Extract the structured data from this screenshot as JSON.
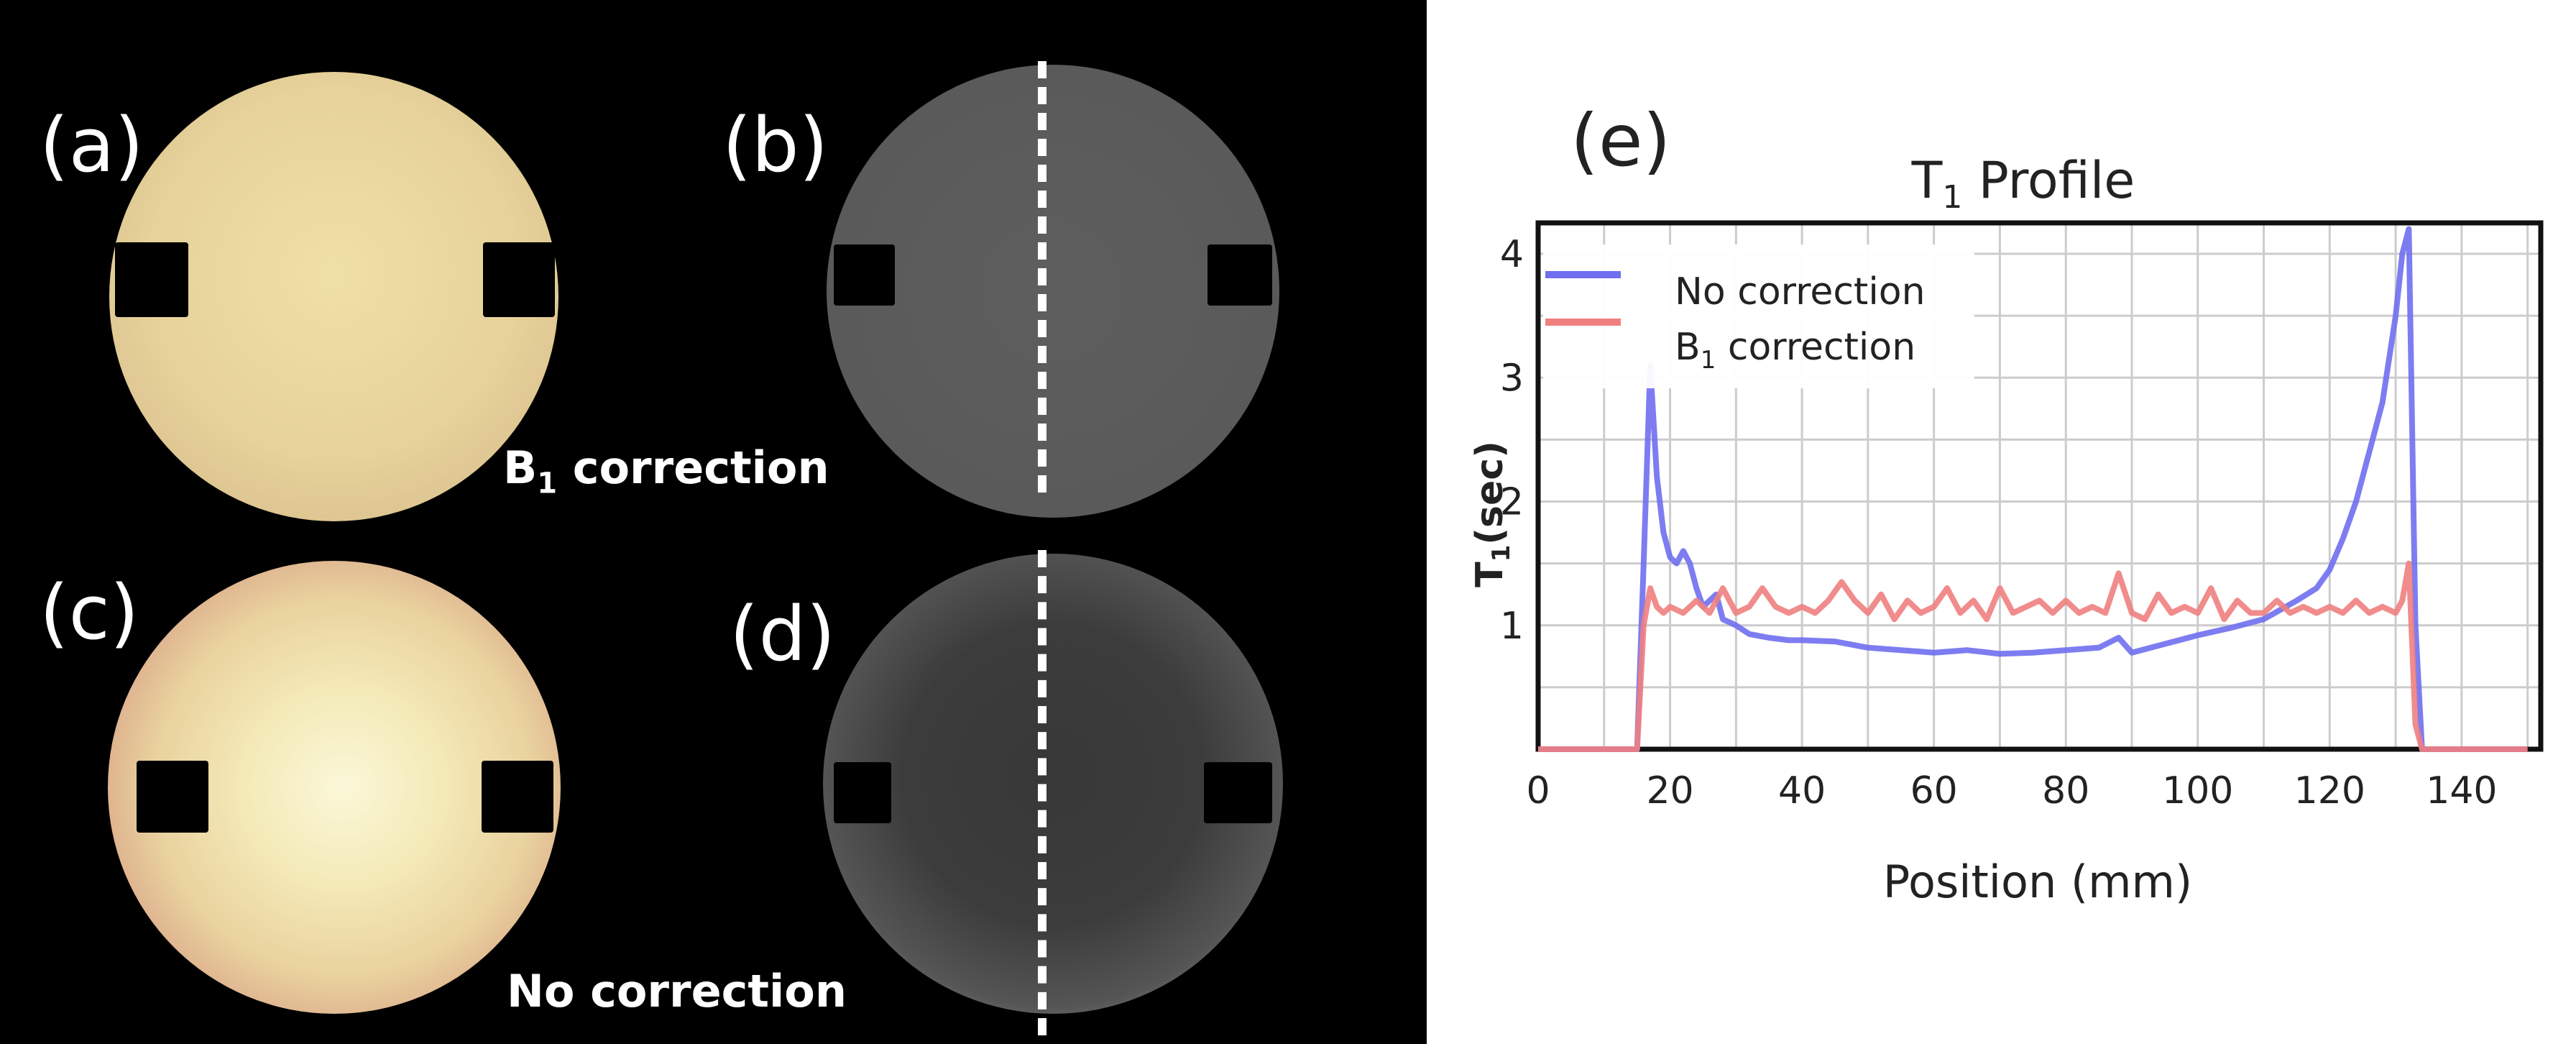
{
  "panels": {
    "a": {
      "label": "(a)",
      "caption_main": "B",
      "caption_sub": "1",
      "caption_rest": " correction"
    },
    "b": {
      "label": "(b)"
    },
    "c": {
      "label": "(c)",
      "caption": "No correction"
    },
    "d": {
      "label": "(d)"
    },
    "e": {
      "label": "(e)"
    }
  },
  "colors": {
    "no_correction": "#6f6ff0",
    "b1_correction": "#f08080",
    "grid": "#cccccc",
    "frame": "#111111"
  },
  "chart_data": {
    "type": "line",
    "title_main": "T",
    "title_sub": "1",
    "title_rest": " Profile",
    "xlabel": "Position (mm)",
    "ylabel_main": "T",
    "ylabel_sub": "1",
    "ylabel_rest": "(sec)",
    "xlim": [
      0,
      152
    ],
    "ylim": [
      0,
      4.25
    ],
    "xticks": [
      0,
      20,
      40,
      60,
      80,
      100,
      120,
      140
    ],
    "yticks": [
      1,
      2,
      3,
      4
    ],
    "legend_position": "top-left",
    "series": [
      {
        "name": "No correction",
        "legend_label": "No correction",
        "color": "#6f6ff0",
        "x": [
          0,
          15,
          16,
          17,
          18,
          19,
          20,
          21,
          22,
          23,
          24,
          25,
          26,
          27,
          28,
          30,
          32,
          35,
          38,
          40,
          45,
          50,
          55,
          60,
          65,
          70,
          75,
          80,
          85,
          88,
          90,
          95,
          100,
          105,
          110,
          115,
          118,
          120,
          122,
          124,
          126,
          128,
          130,
          131,
          132,
          133,
          134,
          140,
          150
        ],
        "y": [
          0,
          0,
          1.5,
          3.1,
          2.2,
          1.75,
          1.55,
          1.5,
          1.6,
          1.5,
          1.3,
          1.15,
          1.2,
          1.25,
          1.05,
          1.0,
          0.93,
          0.9,
          0.88,
          0.88,
          0.87,
          0.82,
          0.8,
          0.78,
          0.8,
          0.77,
          0.78,
          0.8,
          0.82,
          0.9,
          0.78,
          0.85,
          0.92,
          0.98,
          1.05,
          1.2,
          1.3,
          1.45,
          1.7,
          2.0,
          2.4,
          2.8,
          3.5,
          4.0,
          4.2,
          1.0,
          0,
          0,
          0
        ]
      },
      {
        "name": "B1 correction",
        "legend_label_main": "B",
        "legend_label_sub": "1",
        "legend_label_rest": " correction",
        "color": "#f08080",
        "x": [
          0,
          15,
          16,
          17,
          18,
          19,
          20,
          22,
          24,
          26,
          28,
          30,
          32,
          34,
          36,
          38,
          40,
          42,
          44,
          46,
          48,
          50,
          52,
          54,
          56,
          58,
          60,
          62,
          64,
          66,
          68,
          70,
          72,
          74,
          76,
          78,
          80,
          82,
          84,
          86,
          88,
          90,
          92,
          94,
          96,
          98,
          100,
          102,
          104,
          106,
          108,
          110,
          112,
          114,
          116,
          118,
          120,
          122,
          124,
          126,
          128,
          130,
          131,
          132,
          133,
          134,
          140,
          150
        ],
        "y": [
          0,
          0,
          1.0,
          1.3,
          1.15,
          1.1,
          1.15,
          1.1,
          1.2,
          1.1,
          1.3,
          1.1,
          1.15,
          1.3,
          1.15,
          1.1,
          1.15,
          1.1,
          1.2,
          1.35,
          1.2,
          1.1,
          1.25,
          1.05,
          1.2,
          1.1,
          1.15,
          1.3,
          1.1,
          1.2,
          1.05,
          1.3,
          1.1,
          1.15,
          1.2,
          1.1,
          1.2,
          1.1,
          1.15,
          1.1,
          1.42,
          1.1,
          1.05,
          1.25,
          1.1,
          1.15,
          1.1,
          1.3,
          1.05,
          1.2,
          1.1,
          1.1,
          1.2,
          1.1,
          1.15,
          1.1,
          1.15,
          1.1,
          1.2,
          1.1,
          1.15,
          1.1,
          1.2,
          1.5,
          0.2,
          0,
          0,
          0
        ]
      }
    ]
  }
}
